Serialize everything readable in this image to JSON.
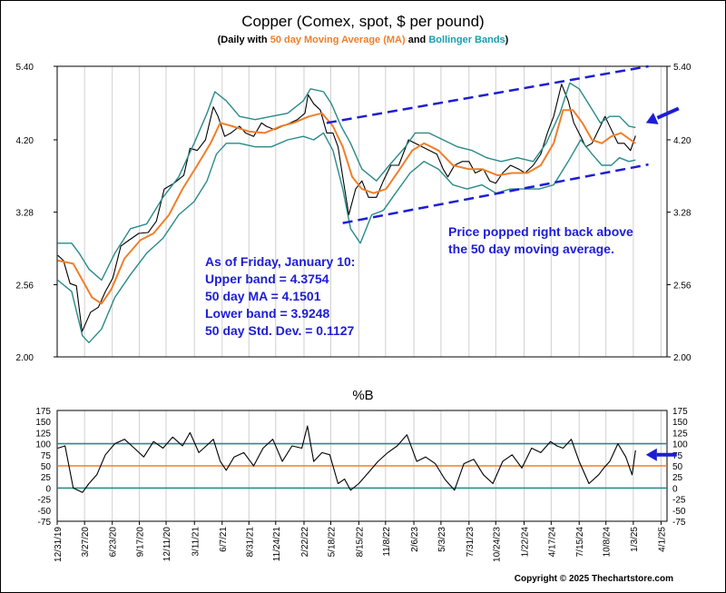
{
  "chart_data": [
    {
      "type": "line",
      "title": "Copper (Comex, spot, $ per pound)",
      "subtitle_parts": [
        "(Daily with ",
        "50 day Moving Average (MA)",
        " and ",
        "Bollinger Bands",
        ")"
      ],
      "ylim": [
        2.0,
        5.4
      ],
      "y_ticks": [
        "5.40",
        "4.20",
        "3.28",
        "2.56",
        "2.00"
      ],
      "y_tick_values": [
        5.4,
        4.2,
        3.28,
        2.56,
        2.0
      ],
      "log_scale": true,
      "x_range": [
        "2019-12-31",
        "2025-04-20"
      ],
      "x_ticks": [
        "12/31/19",
        "3/27/20",
        "6/23/20",
        "9/17/20",
        "12/11/20",
        "3/11/21",
        "6/7/21",
        "8/31/21",
        "11/24/21",
        "2/22/22",
        "5/18/22",
        "8/15/22",
        "11/8/22",
        "2/6/23",
        "5/3/23",
        "7/31/23",
        "10/24/23",
        "1/22/24",
        "4/17/24",
        "7/15/24",
        "10/8/24",
        "1/3/25",
        "4/1/25"
      ],
      "x_tick_dates": [
        "2019-12-31",
        "2020-03-27",
        "2020-06-23",
        "2020-09-17",
        "2020-12-11",
        "2021-03-11",
        "2021-06-07",
        "2021-08-31",
        "2021-11-24",
        "2022-02-22",
        "2022-05-18",
        "2022-08-15",
        "2022-11-08",
        "2023-02-06",
        "2023-05-03",
        "2023-07-31",
        "2023-10-24",
        "2024-01-22",
        "2024-04-17",
        "2024-07-15",
        "2024-10-08",
        "2025-01-03",
        "2025-04-01"
      ],
      "series": [
        {
          "color": "#000000",
          "x": [
            "2020-01-02",
            "2020-01-20",
            "2020-02-10",
            "2020-03-01",
            "2020-03-19",
            "2020-04-15",
            "2020-05-10",
            "2020-06-01",
            "2020-06-25",
            "2020-07-20",
            "2020-08-15",
            "2020-09-15",
            "2020-10-15",
            "2020-11-10",
            "2020-12-05",
            "2021-01-05",
            "2021-02-05",
            "2021-02-25",
            "2021-03-20",
            "2021-04-15",
            "2021-05-10",
            "2021-05-25",
            "2021-06-15",
            "2021-07-05",
            "2021-08-01",
            "2021-08-20",
            "2021-09-15",
            "2021-10-10",
            "2021-10-25",
            "2021-11-20",
            "2021-12-15",
            "2022-01-10",
            "2022-02-01",
            "2022-02-25",
            "2022-03-07",
            "2022-03-25",
            "2022-04-15",
            "2022-05-05",
            "2022-05-25",
            "2022-06-10",
            "2022-06-25",
            "2022-07-14",
            "2022-08-05",
            "2022-08-25",
            "2022-09-15",
            "2022-10-10",
            "2022-11-01",
            "2022-11-25",
            "2022-12-20",
            "2023-01-20",
            "2023-02-10",
            "2023-03-05",
            "2023-03-28",
            "2023-04-20",
            "2023-05-10",
            "2023-05-25",
            "2023-06-15",
            "2023-07-10",
            "2023-07-31",
            "2023-08-20",
            "2023-09-15",
            "2023-10-05",
            "2023-10-24",
            "2023-11-15",
            "2023-12-10",
            "2024-01-05",
            "2024-01-25",
            "2024-02-20",
            "2024-03-15",
            "2024-04-05",
            "2024-04-25",
            "2024-05-20",
            "2024-06-10",
            "2024-06-28",
            "2024-07-20",
            "2024-08-05",
            "2024-08-25",
            "2024-09-20",
            "2024-10-05",
            "2024-10-25",
            "2024-11-15",
            "2024-12-05",
            "2024-12-25",
            "2025-01-10"
          ],
          "values": [
            2.83,
            2.78,
            2.57,
            2.55,
            2.18,
            2.33,
            2.37,
            2.5,
            2.62,
            2.92,
            2.98,
            3.05,
            3.06,
            3.18,
            3.55,
            3.62,
            3.72,
            4.08,
            4.05,
            4.2,
            4.7,
            4.55,
            4.25,
            4.3,
            4.4,
            4.3,
            4.25,
            4.45,
            4.4,
            4.35,
            4.4,
            4.45,
            4.5,
            4.6,
            4.9,
            4.75,
            4.65,
            4.3,
            4.3,
            4.1,
            3.7,
            3.25,
            3.55,
            3.65,
            3.45,
            3.45,
            3.65,
            3.85,
            3.85,
            4.2,
            4.15,
            4.1,
            4.05,
            4.0,
            3.8,
            3.7,
            3.85,
            3.9,
            3.9,
            3.75,
            3.8,
            3.65,
            3.62,
            3.75,
            3.85,
            3.8,
            3.75,
            3.85,
            4.0,
            4.3,
            4.55,
            5.08,
            4.8,
            4.45,
            4.25,
            4.1,
            4.15,
            4.4,
            4.55,
            4.35,
            4.15,
            4.15,
            4.05,
            4.26
          ]
        },
        {
          "name": "50 day Moving Average (MA)",
          "color": "#f07f2a",
          "x": [
            "2020-01-02",
            "2020-02-20",
            "2020-03-20",
            "2020-04-20",
            "2020-05-20",
            "2020-06-20",
            "2020-08-01",
            "2020-09-20",
            "2020-11-01",
            "2020-12-20",
            "2021-02-01",
            "2021-03-20",
            "2021-05-01",
            "2021-06-01",
            "2021-07-10",
            "2021-09-01",
            "2021-10-20",
            "2021-12-10",
            "2022-01-20",
            "2022-03-10",
            "2022-04-20",
            "2022-05-25",
            "2022-06-25",
            "2022-07-25",
            "2022-08-25",
            "2022-10-01",
            "2022-11-10",
            "2022-12-20",
            "2023-02-01",
            "2023-03-10",
            "2023-04-25",
            "2023-06-10",
            "2023-07-30",
            "2023-09-10",
            "2023-10-30",
            "2023-12-15",
            "2024-02-01",
            "2024-03-15",
            "2024-04-25",
            "2024-05-25",
            "2024-06-25",
            "2024-07-25",
            "2024-08-25",
            "2024-09-25",
            "2024-10-25",
            "2024-11-25",
            "2024-12-25",
            "2025-01-10"
          ],
          "values": [
            2.78,
            2.75,
            2.6,
            2.45,
            2.4,
            2.52,
            2.8,
            2.98,
            3.05,
            3.25,
            3.55,
            3.85,
            4.15,
            4.45,
            4.4,
            4.32,
            4.3,
            4.4,
            4.45,
            4.55,
            4.6,
            4.4,
            4.1,
            3.7,
            3.55,
            3.5,
            3.55,
            3.78,
            4.05,
            4.15,
            4.05,
            3.85,
            3.8,
            3.8,
            3.72,
            3.75,
            3.75,
            3.85,
            4.15,
            4.65,
            4.65,
            4.45,
            4.2,
            4.15,
            4.25,
            4.3,
            4.2,
            4.15
          ]
        },
        {
          "name": "Bollinger Bands (upper)",
          "color": "#2a8a8a",
          "x": [
            "2020-01-02",
            "2020-02-15",
            "2020-03-10",
            "2020-04-10",
            "2020-05-20",
            "2020-07-01",
            "2020-08-20",
            "2020-10-10",
            "2020-12-01",
            "2021-01-20",
            "2021-03-10",
            "2021-04-20",
            "2021-05-15",
            "2021-06-20",
            "2021-08-01",
            "2021-09-20",
            "2021-11-10",
            "2022-01-01",
            "2022-02-20",
            "2022-03-15",
            "2022-04-25",
            "2022-05-20",
            "2022-06-20",
            "2022-07-20",
            "2022-08-25",
            "2022-10-10",
            "2022-11-20",
            "2023-01-10",
            "2023-02-10",
            "2023-03-25",
            "2023-05-10",
            "2023-06-25",
            "2023-08-10",
            "2023-09-25",
            "2023-11-10",
            "2024-01-01",
            "2024-02-20",
            "2024-04-01",
            "2024-05-15",
            "2024-06-15",
            "2024-07-15",
            "2024-08-20",
            "2024-09-20",
            "2024-10-20",
            "2024-11-20",
            "2024-12-20",
            "2025-01-10"
          ],
          "values": [
            2.95,
            2.95,
            2.85,
            2.7,
            2.6,
            2.85,
            3.1,
            3.15,
            3.45,
            3.7,
            4.15,
            4.6,
            4.95,
            4.8,
            4.55,
            4.5,
            4.55,
            4.6,
            4.8,
            5.0,
            4.95,
            4.75,
            4.4,
            4.15,
            3.8,
            3.65,
            3.85,
            4.1,
            4.3,
            4.3,
            4.2,
            4.1,
            4.05,
            3.95,
            3.9,
            3.95,
            3.9,
            4.15,
            4.6,
            5.1,
            5.0,
            4.7,
            4.45,
            4.55,
            4.55,
            4.4,
            4.38
          ]
        },
        {
          "name": "Bollinger Bands (lower)",
          "color": "#2a8a8a",
          "x": [
            "2020-01-02",
            "2020-02-15",
            "2020-03-20",
            "2020-04-10",
            "2020-05-20",
            "2020-07-01",
            "2020-08-20",
            "2020-10-10",
            "2020-12-01",
            "2021-01-20",
            "2021-03-10",
            "2021-04-20",
            "2021-05-20",
            "2021-06-20",
            "2021-08-01",
            "2021-09-20",
            "2021-11-10",
            "2022-01-01",
            "2022-02-20",
            "2022-03-25",
            "2022-04-25",
            "2022-05-25",
            "2022-06-25",
            "2022-07-20",
            "2022-08-20",
            "2022-09-25",
            "2022-11-01",
            "2022-12-10",
            "2023-01-25",
            "2023-03-10",
            "2023-04-25",
            "2023-06-10",
            "2023-07-25",
            "2023-09-10",
            "2023-10-25",
            "2023-12-10",
            "2024-01-25",
            "2024-03-10",
            "2024-04-25",
            "2024-06-10",
            "2024-07-20",
            "2024-08-25",
            "2024-09-25",
            "2024-10-25",
            "2024-11-20",
            "2024-12-20",
            "2025-01-10"
          ],
          "values": [
            2.6,
            2.5,
            2.15,
            2.1,
            2.2,
            2.45,
            2.65,
            2.85,
            3.0,
            3.25,
            3.4,
            3.65,
            4.0,
            4.15,
            4.15,
            4.1,
            4.1,
            4.2,
            4.25,
            4.2,
            4.3,
            4.05,
            3.55,
            3.1,
            2.95,
            3.25,
            3.3,
            3.5,
            3.75,
            3.9,
            3.8,
            3.6,
            3.55,
            3.6,
            3.5,
            3.55,
            3.55,
            3.55,
            3.6,
            3.9,
            4.2,
            4.0,
            3.85,
            3.85,
            3.95,
            3.9,
            3.92
          ]
        }
      ],
      "trendlines": [
        {
          "from": [
            "2022-05-05",
            4.45
          ],
          "to": [
            "2025-02-20",
            5.4
          ],
          "color": "#1d1dd6"
        },
        {
          "from": [
            "2022-06-25",
            3.16
          ],
          "to": [
            "2025-02-20",
            3.86
          ],
          "color": "#1d1dd6"
        }
      ],
      "annotation_arrow": {
        "color": "#1d1dd6",
        "points_at": [
          "2025-01-20",
          4.26
        ]
      },
      "annotations": {
        "left": [
          "As of Friday, January 10:",
          "Upper band = 4.3754",
          "50 day MA = 4.1501",
          "Lower band = 3.9248",
          "50 day Std. Dev. = 0.1127"
        ],
        "right": [
          "Price popped right back above",
          "the 50 day moving average."
        ]
      }
    },
    {
      "type": "line",
      "title": "%B",
      "ylim": [
        -75,
        175
      ],
      "y_ticks": [
        "175",
        "150",
        "125",
        "100",
        "75",
        "50",
        "25",
        "0",
        "-25",
        "-50",
        "-75"
      ],
      "y_tick_values": [
        175,
        150,
        125,
        100,
        75,
        50,
        25,
        0,
        -25,
        -50,
        -75
      ],
      "reference_lines": [
        {
          "value": 100,
          "color": "#2a8a8a"
        },
        {
          "value": 50,
          "color": "#f07f2a"
        },
        {
          "value": 0,
          "color": "#2a8a8a"
        }
      ],
      "series": [
        {
          "color": "#000000",
          "x": [
            "2020-01-02",
            "2020-01-25",
            "2020-02-20",
            "2020-03-20",
            "2020-04-10",
            "2020-05-05",
            "2020-06-01",
            "2020-07-01",
            "2020-08-01",
            "2020-09-01",
            "2020-10-01",
            "2020-11-01",
            "2020-12-01",
            "2021-01-01",
            "2021-02-01",
            "2021-02-25",
            "2021-03-25",
            "2021-04-25",
            "2021-05-10",
            "2021-06-01",
            "2021-06-20",
            "2021-07-15",
            "2021-08-15",
            "2021-09-15",
            "2021-10-15",
            "2021-11-15",
            "2021-12-15",
            "2022-01-15",
            "2022-02-15",
            "2022-03-05",
            "2022-03-25",
            "2022-04-20",
            "2022-05-15",
            "2022-06-10",
            "2022-07-01",
            "2022-07-20",
            "2022-08-15",
            "2022-09-15",
            "2022-10-15",
            "2022-11-15",
            "2022-12-15",
            "2023-01-15",
            "2023-02-15",
            "2023-03-15",
            "2023-04-15",
            "2023-05-15",
            "2023-06-15",
            "2023-07-15",
            "2023-08-15",
            "2023-09-15",
            "2023-10-15",
            "2023-11-15",
            "2023-12-15",
            "2024-01-15",
            "2024-02-15",
            "2024-03-15",
            "2024-04-15",
            "2024-05-05",
            "2024-05-25",
            "2024-06-20",
            "2024-07-15",
            "2024-08-15",
            "2024-09-15",
            "2024-10-01",
            "2024-10-20",
            "2024-11-15",
            "2024-12-10",
            "2024-12-30",
            "2025-01-10"
          ],
          "values": [
            90,
            95,
            0,
            -10,
            10,
            30,
            75,
            100,
            110,
            90,
            70,
            105,
            90,
            115,
            95,
            125,
            80,
            100,
            110,
            60,
            40,
            70,
            80,
            50,
            90,
            110,
            60,
            95,
            90,
            140,
            60,
            80,
            75,
            10,
            20,
            -5,
            10,
            35,
            60,
            80,
            95,
            120,
            60,
            70,
            55,
            20,
            -5,
            55,
            65,
            30,
            10,
            60,
            75,
            45,
            90,
            80,
            105,
            95,
            90,
            110,
            60,
            10,
            30,
            45,
            60,
            100,
            70,
            30,
            85
          ]
        }
      ]
    }
  ],
  "copyright": "Copyright © 2025 Thechartstore.com"
}
